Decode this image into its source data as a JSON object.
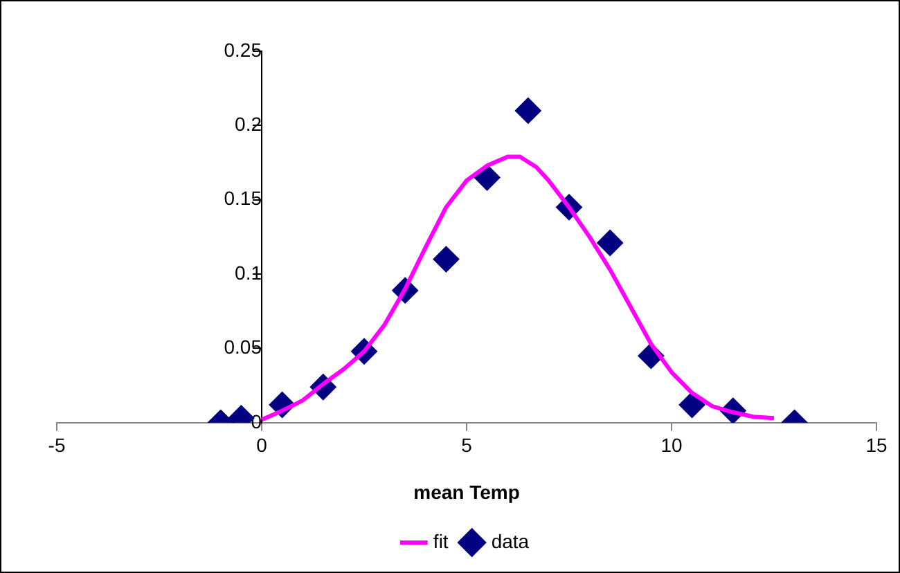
{
  "chart_data": {
    "type": "scatter",
    "xlabel": "mean Temp",
    "xlim": [
      -5,
      15
    ],
    "xticks": [
      -5,
      0,
      5,
      10,
      15
    ],
    "ylim": [
      0,
      0.25
    ],
    "yticks": [
      0,
      0.05,
      0.1,
      0.15,
      0.2,
      0.25
    ],
    "grid": false,
    "legend": "bottom",
    "series": [
      {
        "name": "data",
        "marker": "diamond",
        "color": "#000080",
        "x": [
          -1,
          -0.5,
          0.5,
          1.5,
          2.5,
          3.5,
          4.5,
          5.5,
          6.5,
          7.5,
          8.5,
          9.5,
          10.5,
          11.5,
          13
        ],
        "values": [
          0,
          0.003,
          0.012,
          0.024,
          0.048,
          0.089,
          0.11,
          0.165,
          0.21,
          0.145,
          0.121,
          0.045,
          0.012,
          0.008,
          0
        ]
      },
      {
        "name": "fit",
        "type": "line",
        "marker": "none",
        "color": "#ff00ff",
        "x": [
          0,
          0.5,
          1,
          1.5,
          2,
          2.5,
          3,
          3.5,
          4,
          4.5,
          5,
          5.5,
          6,
          6.3,
          6.7,
          7,
          7.5,
          8,
          8.5,
          9,
          9.5,
          10,
          10.5,
          11,
          11.5,
          12,
          12.5
        ],
        "values": [
          0.002,
          0.008,
          0.015,
          0.026,
          0.036,
          0.048,
          0.066,
          0.09,
          0.118,
          0.145,
          0.163,
          0.173,
          0.179,
          0.179,
          0.172,
          0.163,
          0.145,
          0.125,
          0.103,
          0.078,
          0.053,
          0.034,
          0.02,
          0.011,
          0.007,
          0.004,
          0.003
        ]
      }
    ]
  }
}
